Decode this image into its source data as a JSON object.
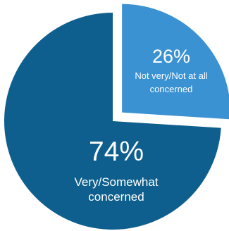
{
  "chart_data": {
    "type": "pie",
    "slices": [
      {
        "value": 74,
        "value_label": "74%",
        "label_lines": [
          "Very/Somewhat",
          "concerned"
        ],
        "color": "#0e5f8e",
        "exploded": false
      },
      {
        "value": 26,
        "value_label": "26%",
        "label_lines": [
          "Not very/Not at all",
          "concerned"
        ],
        "color": "#3a92d3",
        "exploded": true
      }
    ],
    "start_angle_deg": 0,
    "direction": "clockwise",
    "legend": "none"
  }
}
